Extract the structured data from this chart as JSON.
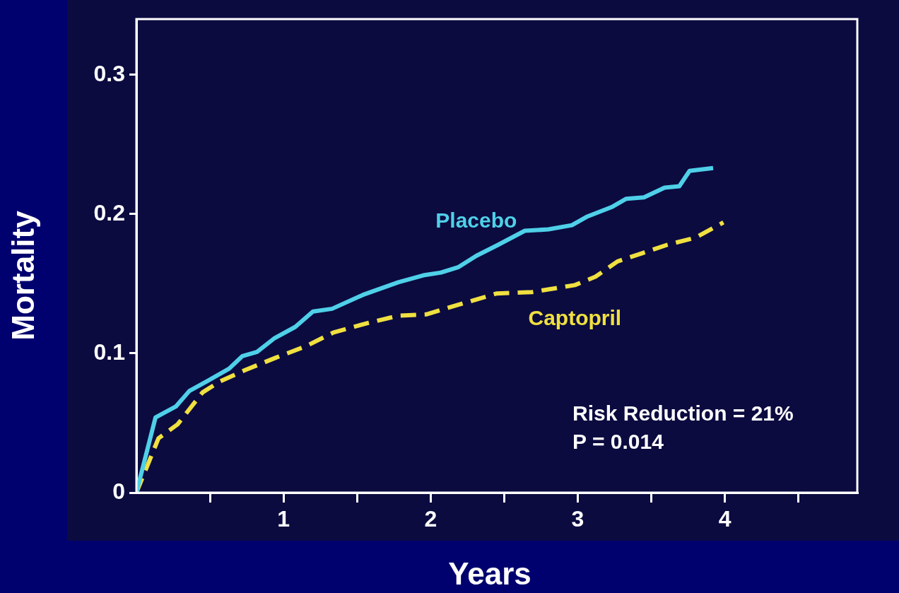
{
  "chart_data": {
    "type": "line",
    "xlabel": "Years",
    "ylabel": "Mortality",
    "xlim": [
      0,
      4.9
    ],
    "ylim": [
      0,
      0.34
    ],
    "xticks": [
      {
        "value": 0.5,
        "label": null
      },
      1,
      {
        "value": 1.5,
        "label": null
      },
      2,
      {
        "value": 2.5,
        "label": null
      },
      3,
      {
        "value": 3.5,
        "label": null
      },
      4,
      {
        "value": 4.5,
        "label": null
      }
    ],
    "yticks": [
      0,
      0.1,
      0.2,
      0.3
    ],
    "grid": false,
    "legend": false,
    "marker": "none",
    "annotations": [
      "Risk Reduction = 21%",
      "P = 0.014"
    ],
    "series": [
      {
        "name": "Placebo",
        "color": "#4fd0e8",
        "line_style": "solid",
        "x": [
          0,
          0.13,
          0.27,
          0.36,
          0.48,
          0.63,
          0.72,
          0.82,
          0.94,
          1.08,
          1.2,
          1.33,
          1.54,
          1.78,
          1.95,
          2.07,
          2.19,
          2.31,
          2.46,
          2.64,
          2.8,
          2.96,
          3.06,
          3.23,
          3.33,
          3.45,
          3.59,
          3.69,
          3.76,
          3.92
        ],
        "values": [
          0,
          0.054,
          0.062,
          0.073,
          0.08,
          0.089,
          0.098,
          0.101,
          0.111,
          0.119,
          0.13,
          0.132,
          0.142,
          0.151,
          0.156,
          0.158,
          0.162,
          0.17,
          0.178,
          0.188,
          0.189,
          0.192,
          0.198,
          0.205,
          0.211,
          0.212,
          0.219,
          0.22,
          0.231,
          0.233
        ]
      },
      {
        "name": "Captopril",
        "color": "#f0e040",
        "line_style": "dashed",
        "x": [
          0,
          0.15,
          0.28,
          0.45,
          0.57,
          0.74,
          0.95,
          1.15,
          1.34,
          1.58,
          1.78,
          1.97,
          2.16,
          2.45,
          2.69,
          2.98,
          3.12,
          3.27,
          3.44,
          3.61,
          3.8,
          3.99
        ],
        "values": [
          0,
          0.039,
          0.049,
          0.072,
          0.08,
          0.088,
          0.097,
          0.105,
          0.115,
          0.122,
          0.127,
          0.128,
          0.134,
          0.143,
          0.144,
          0.149,
          0.155,
          0.166,
          0.172,
          0.178,
          0.183,
          0.194
        ]
      }
    ]
  }
}
